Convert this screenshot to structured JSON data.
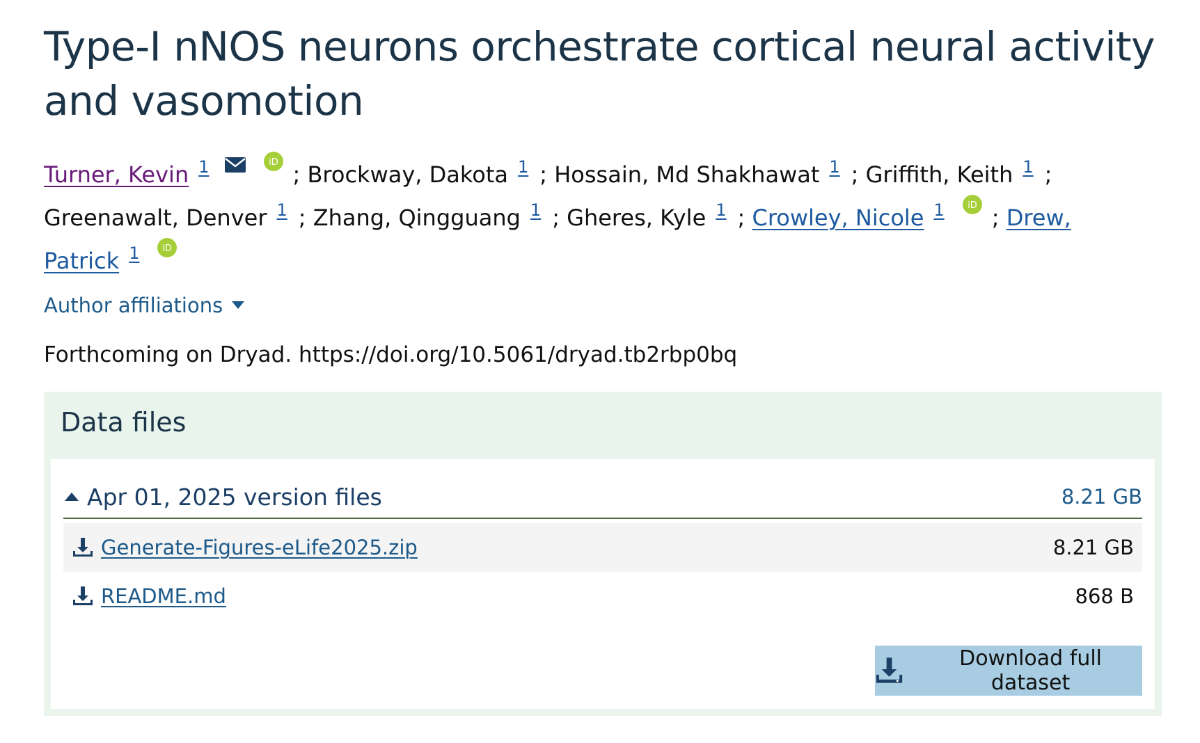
{
  "title": "Type-I nNOS neurons orchestrate cortical neural activity and vasomotion",
  "authors": [
    {
      "name": "Turner, Kevin",
      "affiliation": "1",
      "linked": true,
      "has_email": true,
      "has_orcid": true
    },
    {
      "name": "Brockway, Dakota",
      "affiliation": "1",
      "linked": false,
      "has_email": false,
      "has_orcid": false
    },
    {
      "name": "Hossain, Md Shakhawat",
      "affiliation": "1",
      "linked": false,
      "has_email": false,
      "has_orcid": false
    },
    {
      "name": "Griffith, Keith",
      "affiliation": "1",
      "linked": false,
      "has_email": false,
      "has_orcid": false
    },
    {
      "name": "Greenawalt, Denver",
      "affiliation": "1",
      "linked": false,
      "has_email": false,
      "has_orcid": false
    },
    {
      "name": "Zhang, Qingguang",
      "affiliation": "1",
      "linked": false,
      "has_email": false,
      "has_orcid": false
    },
    {
      "name": "Gheres, Kyle",
      "affiliation": "1",
      "linked": false,
      "has_email": false,
      "has_orcid": false
    },
    {
      "name": "Crowley, Nicole",
      "affiliation": "1",
      "linked": true,
      "has_email": false,
      "has_orcid": true
    },
    {
      "name": "Drew, Patrick",
      "affiliation": "1",
      "linked": true,
      "has_email": false,
      "has_orcid": true
    }
  ],
  "separator": ";",
  "affiliations_toggle": "Author affiliations",
  "doi_line": "Forthcoming on Dryad. https://doi.org/10.5061/dryad.tb2rbp0bq",
  "data_files": {
    "heading": "Data files",
    "version": {
      "label": "Apr 01, 2025 version files",
      "size": "8.21 GB"
    },
    "files": [
      {
        "name": "Generate-Figures-eLife2025.zip",
        "size": "8.21 GB"
      },
      {
        "name": "README.md",
        "size": "868 B"
      }
    ],
    "download_button": "Download full dataset"
  },
  "colors": {
    "title": "#1c3448",
    "link": "#1d5aa0",
    "visited_link": "#6a1b7a",
    "orcid": "#a6ce39",
    "panel_bg": "#e8f4ec",
    "button_bg": "#a8cde3"
  },
  "icons": {
    "email": "envelope-icon",
    "orcid": "orcid-icon",
    "caret_down": "caret-down-icon",
    "caret_up": "caret-up-icon",
    "download": "download-icon"
  }
}
